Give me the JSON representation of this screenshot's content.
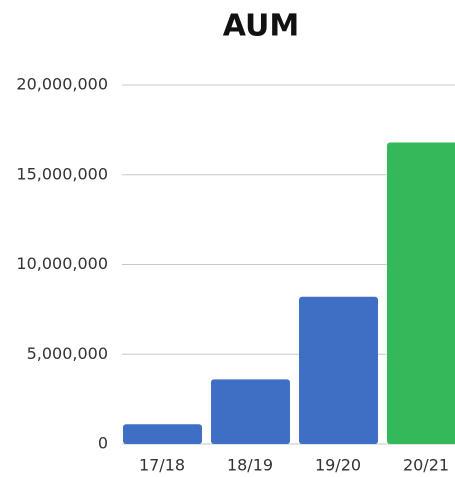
{
  "chart_data": {
    "type": "bar",
    "title": "AUM",
    "categories": [
      "17/18",
      "18/19",
      "19/20",
      "20/21"
    ],
    "values": [
      1100000,
      3600000,
      8200000,
      16800000
    ],
    "colors": [
      "#3f6fc4",
      "#3f6fc4",
      "#3f6fc4",
      "#33b95a"
    ],
    "ylim": [
      0,
      20000000
    ],
    "yticks": [
      0,
      {
        "value": 5000000,
        "label": "5,000,000"
      },
      {
        "value": 10000000,
        "label": "10,000,000"
      },
      {
        "value": 15000000,
        "label": "15,000,000"
      },
      {
        "value": 20000000,
        "label": "20,000,000"
      }
    ],
    "grid": true
  }
}
